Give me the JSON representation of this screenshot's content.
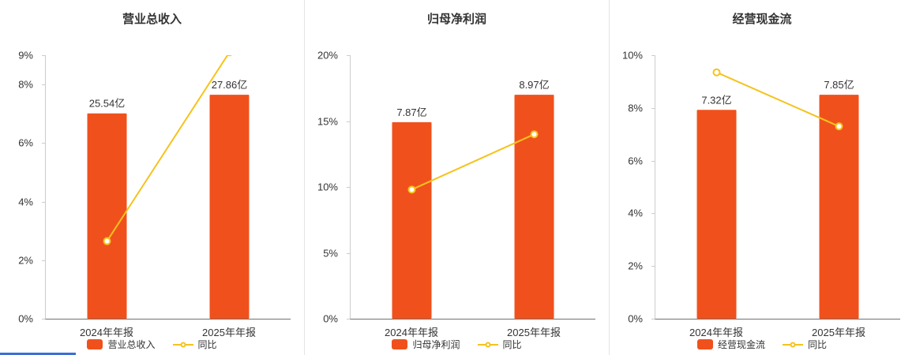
{
  "colors": {
    "bar": "#f0511c",
    "line": "#f5c31d",
    "axis": "#cccccc",
    "baseline": "#707070",
    "text": "#333333",
    "divider": "#e4e4e4",
    "bottom_strip": "#3b6fd6"
  },
  "chart_data": [
    {
      "type": "bar",
      "title": "营业总收入",
      "categories": [
        "2024年年报",
        "2025年年报"
      ],
      "bar_series": {
        "name": "营业总收入",
        "unit": "亿",
        "values": [
          25.54,
          27.86
        ],
        "labels": [
          "25.54亿",
          "27.86亿"
        ],
        "color": "#f0511c"
      },
      "line_series": {
        "name": "同比",
        "unit": "%",
        "values": [
          2.65,
          9.1
        ],
        "color": "#f5c31d"
      },
      "y_axis": {
        "unit": "%",
        "max": 9,
        "tick_values": [
          0,
          2,
          4,
          6,
          8,
          9
        ],
        "tick_labels": [
          "0%",
          "2%",
          "4%",
          "6%",
          "8%",
          "9%"
        ]
      },
      "legend_position": "bottom",
      "grid": false
    },
    {
      "type": "bar",
      "title": "归母净利润",
      "categories": [
        "2024年年报",
        "2025年年报"
      ],
      "bar_series": {
        "name": "归母净利润",
        "unit": "亿",
        "values": [
          7.87,
          8.97
        ],
        "labels": [
          "7.87亿",
          "8.97亿"
        ],
        "color": "#f0511c"
      },
      "line_series": {
        "name": "同比",
        "unit": "%",
        "values": [
          9.8,
          14.0
        ],
        "color": "#f5c31d"
      },
      "y_axis": {
        "unit": "%",
        "max": 20,
        "tick_values": [
          0,
          5,
          10,
          15,
          20
        ],
        "tick_labels": [
          "0%",
          "5%",
          "10%",
          "15%",
          "20%"
        ]
      },
      "legend_position": "bottom",
      "grid": false
    },
    {
      "type": "bar",
      "title": "经营现金流",
      "categories": [
        "2024年年报",
        "2025年年报"
      ],
      "bar_series": {
        "name": "经营现金流",
        "unit": "亿",
        "values": [
          7.32,
          7.85
        ],
        "labels": [
          "7.32亿",
          "7.85亿"
        ],
        "color": "#f0511c"
      },
      "line_series": {
        "name": "同比",
        "unit": "%",
        "values": [
          9.35,
          7.3
        ],
        "color": "#f5c31d"
      },
      "y_axis": {
        "unit": "%",
        "max": 10,
        "tick_values": [
          0,
          2,
          4,
          6,
          8,
          10
        ],
        "tick_labels": [
          "0%",
          "2%",
          "4%",
          "6%",
          "8%",
          "10%"
        ]
      },
      "legend_position": "bottom",
      "grid": false
    }
  ]
}
